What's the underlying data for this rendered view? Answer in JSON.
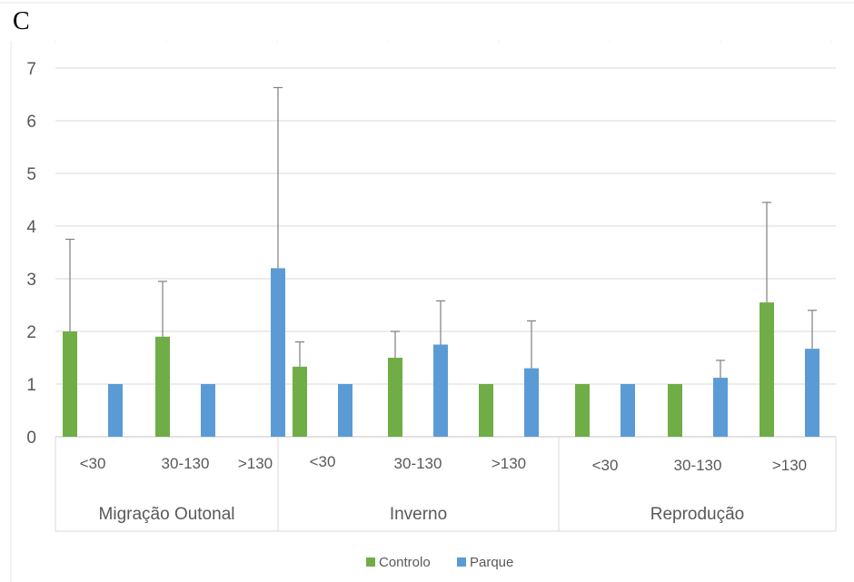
{
  "panel_label": "C",
  "colors": {
    "controlo": "#70ad47",
    "parque": "#5b9bd5",
    "grid": "#d9d9d9",
    "error": "#7f7f7f",
    "text": "#595959"
  },
  "chart_data": {
    "type": "bar",
    "title": "",
    "xlabel": "",
    "ylabel": "",
    "ylim": [
      0,
      7
    ],
    "yticks": [
      "0",
      "1",
      "2",
      "3",
      "4",
      "5",
      "6",
      "7"
    ],
    "grid": true,
    "legend_position": "bottom",
    "groups": [
      {
        "label": "Migração Outonal",
        "categories": [
          "<30",
          "30-130",
          ">130"
        ]
      },
      {
        "label": "Inverno",
        "categories": [
          "<30",
          "30-130",
          ">130"
        ]
      },
      {
        "label": "Reprodução",
        "categories": [
          "<30",
          "30-130",
          ">130"
        ]
      }
    ],
    "series": [
      {
        "name": "Controlo",
        "values": [
          2.0,
          1.9,
          null,
          1.33,
          1.5,
          1.0,
          1.0,
          1.0,
          2.55
        ],
        "error_upper": [
          3.75,
          2.95,
          null,
          1.8,
          2.0,
          null,
          null,
          null,
          4.45
        ]
      },
      {
        "name": "Parque",
        "values": [
          1.0,
          1.0,
          3.2,
          1.0,
          1.75,
          1.3,
          1.0,
          1.12,
          1.67
        ],
        "error_upper": [
          null,
          null,
          6.63,
          null,
          2.58,
          2.2,
          null,
          1.45,
          2.4
        ]
      }
    ]
  }
}
